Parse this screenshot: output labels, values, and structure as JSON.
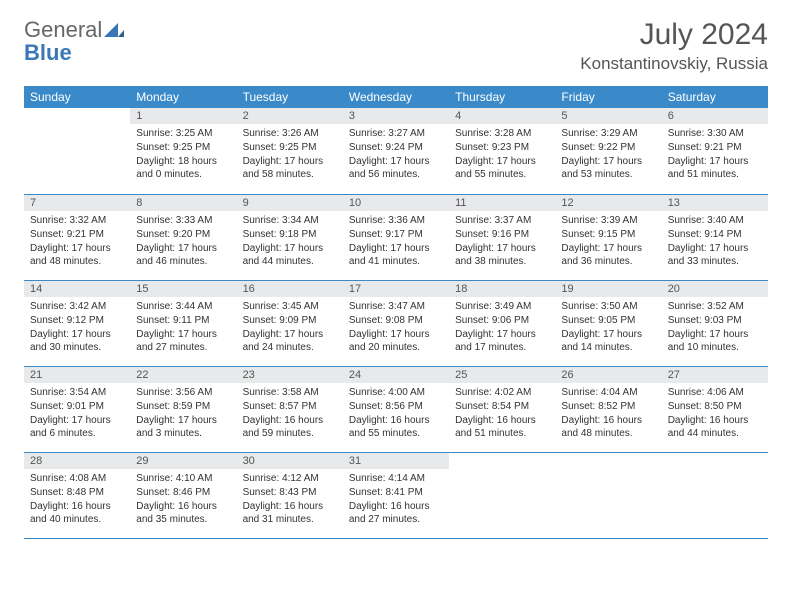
{
  "brand": {
    "word1": "General",
    "word2": "Blue"
  },
  "title": {
    "month": "July 2024",
    "location": "Konstantinovskiy, Russia"
  },
  "headers": [
    "Sunday",
    "Monday",
    "Tuesday",
    "Wednesday",
    "Thursday",
    "Friday",
    "Saturday"
  ],
  "colors": {
    "header_bg": "#3a8ac9",
    "header_fg": "#ffffff",
    "daynum_bg": "#e7e9eb",
    "rule": "#3a8ac9",
    "accent": "#3a77b7"
  },
  "weeks": [
    [
      null,
      {
        "n": "1",
        "sr": "Sunrise: 3:25 AM",
        "ss": "Sunset: 9:25 PM",
        "dl": "Daylight: 18 hours and 0 minutes."
      },
      {
        "n": "2",
        "sr": "Sunrise: 3:26 AM",
        "ss": "Sunset: 9:25 PM",
        "dl": "Daylight: 17 hours and 58 minutes."
      },
      {
        "n": "3",
        "sr": "Sunrise: 3:27 AM",
        "ss": "Sunset: 9:24 PM",
        "dl": "Daylight: 17 hours and 56 minutes."
      },
      {
        "n": "4",
        "sr": "Sunrise: 3:28 AM",
        "ss": "Sunset: 9:23 PM",
        "dl": "Daylight: 17 hours and 55 minutes."
      },
      {
        "n": "5",
        "sr": "Sunrise: 3:29 AM",
        "ss": "Sunset: 9:22 PM",
        "dl": "Daylight: 17 hours and 53 minutes."
      },
      {
        "n": "6",
        "sr": "Sunrise: 3:30 AM",
        "ss": "Sunset: 9:21 PM",
        "dl": "Daylight: 17 hours and 51 minutes."
      }
    ],
    [
      {
        "n": "7",
        "sr": "Sunrise: 3:32 AM",
        "ss": "Sunset: 9:21 PM",
        "dl": "Daylight: 17 hours and 48 minutes."
      },
      {
        "n": "8",
        "sr": "Sunrise: 3:33 AM",
        "ss": "Sunset: 9:20 PM",
        "dl": "Daylight: 17 hours and 46 minutes."
      },
      {
        "n": "9",
        "sr": "Sunrise: 3:34 AM",
        "ss": "Sunset: 9:18 PM",
        "dl": "Daylight: 17 hours and 44 minutes."
      },
      {
        "n": "10",
        "sr": "Sunrise: 3:36 AM",
        "ss": "Sunset: 9:17 PM",
        "dl": "Daylight: 17 hours and 41 minutes."
      },
      {
        "n": "11",
        "sr": "Sunrise: 3:37 AM",
        "ss": "Sunset: 9:16 PM",
        "dl": "Daylight: 17 hours and 38 minutes."
      },
      {
        "n": "12",
        "sr": "Sunrise: 3:39 AM",
        "ss": "Sunset: 9:15 PM",
        "dl": "Daylight: 17 hours and 36 minutes."
      },
      {
        "n": "13",
        "sr": "Sunrise: 3:40 AM",
        "ss": "Sunset: 9:14 PM",
        "dl": "Daylight: 17 hours and 33 minutes."
      }
    ],
    [
      {
        "n": "14",
        "sr": "Sunrise: 3:42 AM",
        "ss": "Sunset: 9:12 PM",
        "dl": "Daylight: 17 hours and 30 minutes."
      },
      {
        "n": "15",
        "sr": "Sunrise: 3:44 AM",
        "ss": "Sunset: 9:11 PM",
        "dl": "Daylight: 17 hours and 27 minutes."
      },
      {
        "n": "16",
        "sr": "Sunrise: 3:45 AM",
        "ss": "Sunset: 9:09 PM",
        "dl": "Daylight: 17 hours and 24 minutes."
      },
      {
        "n": "17",
        "sr": "Sunrise: 3:47 AM",
        "ss": "Sunset: 9:08 PM",
        "dl": "Daylight: 17 hours and 20 minutes."
      },
      {
        "n": "18",
        "sr": "Sunrise: 3:49 AM",
        "ss": "Sunset: 9:06 PM",
        "dl": "Daylight: 17 hours and 17 minutes."
      },
      {
        "n": "19",
        "sr": "Sunrise: 3:50 AM",
        "ss": "Sunset: 9:05 PM",
        "dl": "Daylight: 17 hours and 14 minutes."
      },
      {
        "n": "20",
        "sr": "Sunrise: 3:52 AM",
        "ss": "Sunset: 9:03 PM",
        "dl": "Daylight: 17 hours and 10 minutes."
      }
    ],
    [
      {
        "n": "21",
        "sr": "Sunrise: 3:54 AM",
        "ss": "Sunset: 9:01 PM",
        "dl": "Daylight: 17 hours and 6 minutes."
      },
      {
        "n": "22",
        "sr": "Sunrise: 3:56 AM",
        "ss": "Sunset: 8:59 PM",
        "dl": "Daylight: 17 hours and 3 minutes."
      },
      {
        "n": "23",
        "sr": "Sunrise: 3:58 AM",
        "ss": "Sunset: 8:57 PM",
        "dl": "Daylight: 16 hours and 59 minutes."
      },
      {
        "n": "24",
        "sr": "Sunrise: 4:00 AM",
        "ss": "Sunset: 8:56 PM",
        "dl": "Daylight: 16 hours and 55 minutes."
      },
      {
        "n": "25",
        "sr": "Sunrise: 4:02 AM",
        "ss": "Sunset: 8:54 PM",
        "dl": "Daylight: 16 hours and 51 minutes."
      },
      {
        "n": "26",
        "sr": "Sunrise: 4:04 AM",
        "ss": "Sunset: 8:52 PM",
        "dl": "Daylight: 16 hours and 48 minutes."
      },
      {
        "n": "27",
        "sr": "Sunrise: 4:06 AM",
        "ss": "Sunset: 8:50 PM",
        "dl": "Daylight: 16 hours and 44 minutes."
      }
    ],
    [
      {
        "n": "28",
        "sr": "Sunrise: 4:08 AM",
        "ss": "Sunset: 8:48 PM",
        "dl": "Daylight: 16 hours and 40 minutes."
      },
      {
        "n": "29",
        "sr": "Sunrise: 4:10 AM",
        "ss": "Sunset: 8:46 PM",
        "dl": "Daylight: 16 hours and 35 minutes."
      },
      {
        "n": "30",
        "sr": "Sunrise: 4:12 AM",
        "ss": "Sunset: 8:43 PM",
        "dl": "Daylight: 16 hours and 31 minutes."
      },
      {
        "n": "31",
        "sr": "Sunrise: 4:14 AM",
        "ss": "Sunset: 8:41 PM",
        "dl": "Daylight: 16 hours and 27 minutes."
      },
      null,
      null,
      null
    ]
  ]
}
